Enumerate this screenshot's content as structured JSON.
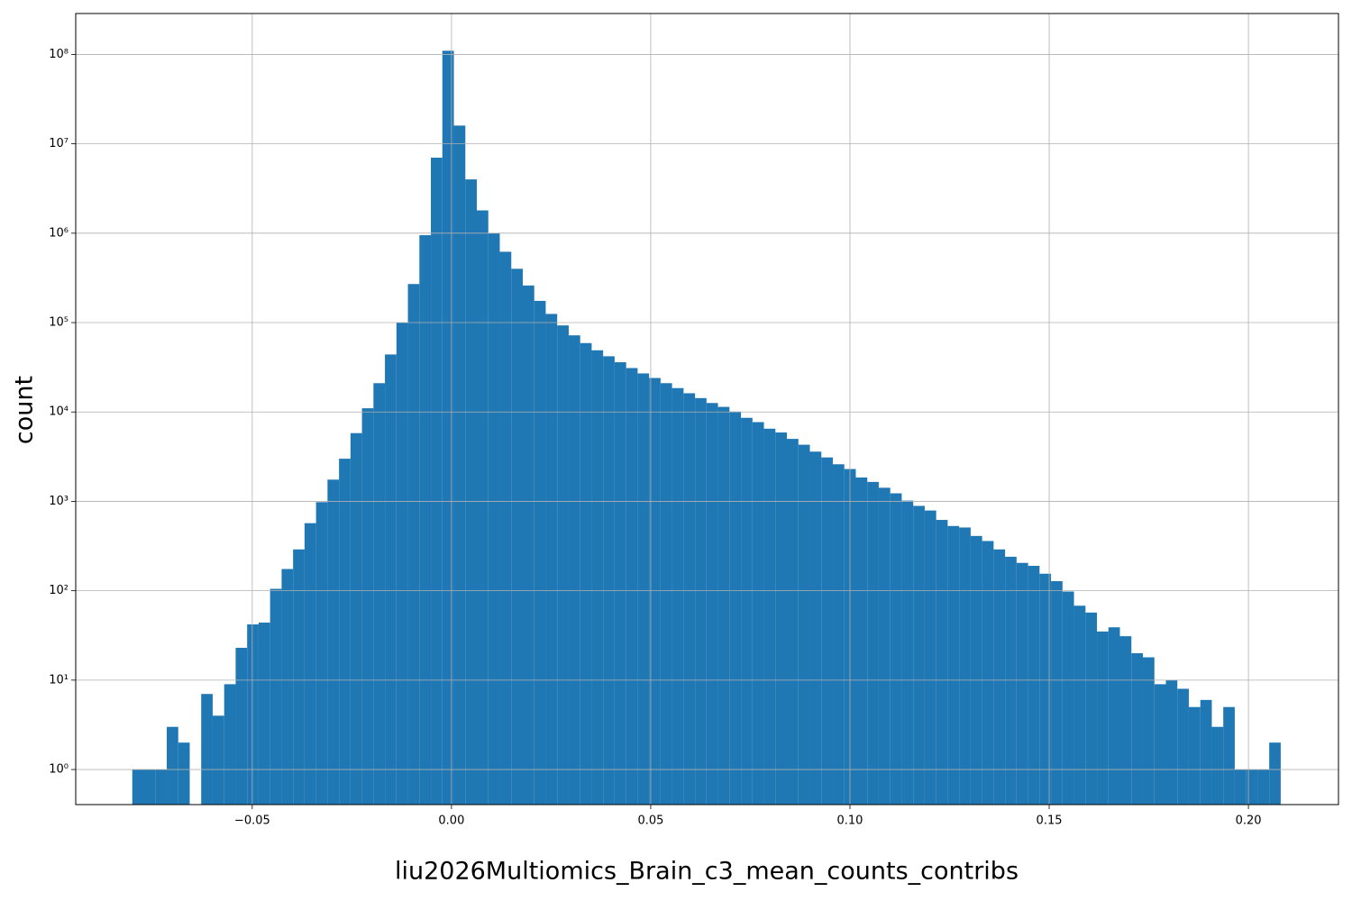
{
  "chart_data": {
    "type": "histogram",
    "xlabel": "liu2026Multiomics_Brain_c3_mean_counts_contribs",
    "ylabel": "count",
    "color": "#1f77b4",
    "log_y": true,
    "grid": true,
    "bins": [
      -0.0801,
      -0.07722,
      -0.07434,
      -0.07145,
      -0.06857,
      -0.06569,
      -0.06281,
      -0.05993,
      -0.05704,
      -0.05416,
      -0.05128,
      -0.0484,
      -0.04552,
      -0.04263,
      -0.03975,
      -0.03687,
      -0.03399,
      -0.03111,
      -0.02822,
      -0.02534,
      -0.02246,
      -0.01958,
      -0.0167,
      -0.01381,
      -0.01093,
      -0.00805,
      -0.00517,
      -0.00229,
      0.0006,
      0.00348,
      0.00636,
      0.00924,
      0.01212,
      0.01501,
      0.01789,
      0.02077,
      0.02365,
      0.02653,
      0.02942,
      0.0323,
      0.03518,
      0.03806,
      0.04094,
      0.04383,
      0.04671,
      0.04959,
      0.05247,
      0.05535,
      0.05824,
      0.06112,
      0.064,
      0.06688,
      0.06976,
      0.07265,
      0.07553,
      0.07841,
      0.08129,
      0.08417,
      0.08706,
      0.08994,
      0.09282,
      0.0957,
      0.09858,
      0.10147,
      0.10435,
      0.10723,
      0.11011,
      0.11299,
      0.11588,
      0.11876,
      0.12164,
      0.12452,
      0.1274,
      0.13029,
      0.13317,
      0.13605,
      0.13893,
      0.14181,
      0.1447,
      0.14758,
      0.15046,
      0.15334,
      0.15622,
      0.15911,
      0.16199,
      0.16487,
      0.16775,
      0.17063,
      0.17352,
      0.1764,
      0.17928,
      0.18216,
      0.18504,
      0.18793,
      0.19081,
      0.19369,
      0.19657,
      0.19945,
      0.20234,
      0.20522,
      0.2081
    ],
    "values": [
      1,
      1,
      1,
      3,
      2,
      0,
      7,
      4,
      9,
      23,
      42,
      44,
      105,
      175,
      290,
      570,
      980,
      1750,
      3000,
      5800,
      11000,
      21000,
      44000,
      100000,
      270000,
      950000,
      7000000,
      110000000,
      16000000,
      4000000,
      1800000,
      1000000,
      620000,
      400000,
      260000,
      175000,
      125000,
      93000,
      72000,
      59000,
      49000,
      42000,
      36000,
      31000,
      27000,
      24000,
      21000,
      18500,
      16200,
      14300,
      12600,
      11400,
      10100,
      8600,
      7700,
      6500,
      5900,
      5000,
      4300,
      3600,
      3100,
      2600,
      2300,
      1850,
      1650,
      1420,
      1230,
      1020,
      890,
      790,
      620,
      530,
      510,
      410,
      360,
      290,
      240,
      205,
      190,
      155,
      128,
      98,
      68,
      57,
      35,
      39,
      31,
      20,
      18,
      9,
      10,
      8,
      5,
      6,
      3,
      5,
      1,
      1,
      1,
      2
    ],
    "xlim": [
      -0.0943,
      0.2226
    ],
    "ylim": [
      0.405,
      287000000
    ],
    "xticks": [
      {
        "value": -0.05,
        "label": "−0.05"
      },
      {
        "value": 0,
        "label": "0.00"
      },
      0.05,
      {
        "value": 0.1,
        "label": "0.10"
      },
      0.15,
      {
        "value": 0.2,
        "label": "0.20"
      }
    ],
    "yticks": [
      {
        "value": 1,
        "label": "10⁰"
      },
      {
        "value": 10,
        "label": "10¹"
      },
      {
        "value": 100,
        "label": "10²"
      },
      {
        "value": 1000,
        "label": "10³"
      },
      {
        "value": 10000,
        "label": "10⁴"
      },
      {
        "value": 100000,
        "label": "10⁵"
      },
      {
        "value": 1000000,
        "label": "10⁶"
      },
      {
        "value": 10000000,
        "label": "10⁷"
      },
      {
        "value": 100000000,
        "label": "10⁸"
      }
    ]
  }
}
